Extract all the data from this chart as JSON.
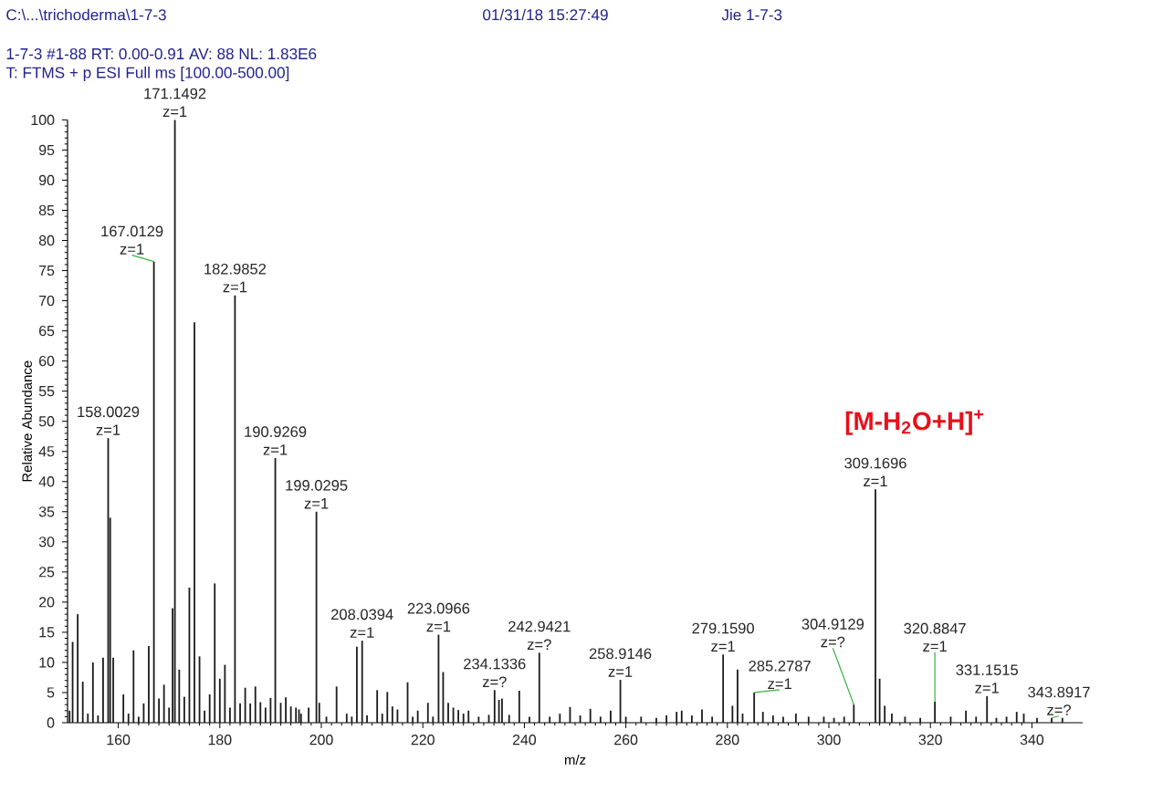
{
  "chart_data": {
    "type": "bar",
    "x": [
      150.4,
      151,
      152,
      153,
      154,
      155,
      156,
      157,
      158.0029,
      158.4,
      159,
      161,
      162,
      163,
      164,
      165,
      166,
      167.0129,
      168,
      169,
      170,
      170.7,
      171.1492,
      172,
      173,
      174,
      175,
      176,
      177,
      178,
      179,
      180,
      181,
      182,
      182.9852,
      184,
      185,
      186,
      187,
      188,
      189,
      190,
      190.9269,
      192,
      193,
      194,
      195,
      195.6,
      196,
      197.5,
      199.0295,
      199.6,
      201,
      203,
      205,
      206,
      207,
      208.0394,
      209,
      211,
      212,
      213,
      214,
      215,
      217,
      218,
      219,
      221,
      222,
      223.0966,
      224,
      225,
      226,
      227,
      228,
      229,
      231,
      233,
      234.1336,
      235,
      235.6,
      237,
      239,
      241,
      242.9421,
      245,
      247,
      249,
      251,
      253,
      255,
      257,
      258.9146,
      260,
      263,
      266,
      268,
      270,
      271,
      273,
      275,
      277,
      279.159,
      281,
      282,
      283,
      285.2787,
      287,
      289,
      291,
      293.5,
      296,
      299,
      301,
      303,
      304.9129,
      309.1696,
      310,
      311,
      312.4,
      315,
      318,
      320.8847,
      324,
      327,
      329,
      331.1515,
      333,
      335,
      337,
      338.4,
      341,
      343.8917,
      346
    ],
    "values": [
      2,
      13.4,
      18,
      6.8,
      1.5,
      10,
      1.2,
      10.8,
      47.2,
      34,
      10.8,
      4.7,
      1.5,
      12,
      1,
      3.2,
      12.7,
      76.5,
      4,
      6.3,
      2.5,
      19,
      100,
      8.8,
      4.3,
      22.4,
      66.4,
      11,
      2,
      4.7,
      23.1,
      7.3,
      9.6,
      2.5,
      70.9,
      3.2,
      5.8,
      3.2,
      6,
      3.4,
      2.5,
      4.1,
      43.9,
      3.3,
      4.2,
      2.7,
      2.5,
      2.2,
      1.5,
      2.5,
      35,
      3.3,
      1,
      6,
      1.5,
      1,
      12.6,
      13.6,
      1.2,
      5.4,
      1.5,
      5.1,
      2.7,
      2.2,
      6.7,
      1,
      2,
      3.3,
      1,
      14.6,
      8.4,
      3.3,
      2.5,
      2.1,
      1.5,
      2,
      1,
      1.3,
      5.4,
      3.8,
      4,
      1.3,
      5.3,
      1,
      11.6,
      1,
      1.5,
      2.6,
      1.2,
      2.3,
      1,
      2,
      7.1,
      1,
      1,
      0.8,
      1.2,
      1.8,
      2,
      1.2,
      2.2,
      1,
      11.3,
      2.8,
      8.8,
      1.5,
      5,
      1.8,
      1.2,
      1,
      1.5,
      1,
      1,
      0.8,
      1,
      3,
      38.7,
      7.3,
      2.8,
      1.5,
      1,
      0.8,
      3.5,
      1,
      2,
      1,
      4.4,
      0.8,
      1,
      1.8,
      1.5,
      0.8,
      0.8,
      0.8
    ],
    "color": "#1a1a1a",
    "xlim": [
      150,
      350
    ],
    "ylim": [
      0,
      100
    ],
    "xticks": [
      160,
      180,
      200,
      220,
      240,
      260,
      280,
      300,
      320,
      340
    ],
    "yticks": [
      0,
      5,
      10,
      15,
      20,
      25,
      30,
      35,
      40,
      45,
      50,
      55,
      60,
      65,
      70,
      75,
      80,
      85,
      90,
      95,
      100
    ],
    "xlabel": "m/z",
    "ylabel": "Relative Abundance",
    "annotations": [
      "C:\\...\\trichoderma\\1-7-3",
      "01/31/18 15:27:49",
      "Jie 1-7-3",
      "1-7-3 #1-88 RT: 0.00-0.91 AV: 88 NL: 1.83E6",
      "T: FTMS + p ESI Full ms [100.00-500.00]",
      "[M-H$_{2}$O+H]$^{+}$",
      {
        "text": "158.0029",
        "x": 158.0029,
        "y": 47.2
      },
      {
        "text": "z=1",
        "x": 158.0029,
        "y": 47.2
      },
      {
        "text": "167.0129",
        "x": 167.0129,
        "y": 76.5
      },
      {
        "text": "z=1",
        "x": 167.0129,
        "y": 76.5
      },
      {
        "text": "171.1492",
        "x": 171.1492,
        "y": 100
      },
      {
        "text": "z=1",
        "x": 171.1492,
        "y": 100
      },
      {
        "text": "182.9852",
        "x": 182.9852,
        "y": 70.9
      },
      {
        "text": "z=1",
        "x": 182.9852,
        "y": 70.9
      },
      {
        "text": "190.9269",
        "x": 190.9269,
        "y": 43.9
      },
      {
        "text": "z=1",
        "x": 190.9269,
        "y": 43.9
      },
      {
        "text": "199.0295",
        "x": 199.0295,
        "y": 35
      },
      {
        "text": "z=1",
        "x": 199.0295,
        "y": 35
      },
      {
        "text": "208.0394",
        "x": 208.0394,
        "y": 13.6
      },
      {
        "text": "z=1",
        "x": 208.0394,
        "y": 13.6
      },
      {
        "text": "223.0966",
        "x": 223.0966,
        "y": 14.6
      },
      {
        "text": "z=1",
        "x": 223.0966,
        "y": 14.6
      },
      {
        "text": "234.1336",
        "x": 234.1336,
        "y": 5.4
      },
      {
        "text": "z=?",
        "x": 234.1336,
        "y": 5.4
      },
      {
        "text": "242.9421",
        "x": 242.9421,
        "y": 11.6
      },
      {
        "text": "z=?",
        "x": 242.9421,
        "y": 11.6
      },
      {
        "text": "258.9146",
        "x": 258.9146,
        "y": 7.1
      },
      {
        "text": "z=1",
        "x": 258.9146,
        "y": 7.1
      },
      {
        "text": "279.1590",
        "x": 279.159,
        "y": 11.3
      },
      {
        "text": "z=1",
        "x": 279.159,
        "y": 11.3
      },
      {
        "text": "285.2787",
        "x": 285.2787,
        "y": 5
      },
      {
        "text": "z=1",
        "x": 285.2787,
        "y": 5
      },
      {
        "text": "304.9129",
        "x": 304.9129,
        "y": 3
      },
      {
        "text": "z=?",
        "x": 304.9129,
        "y": 3
      },
      {
        "text": "309.1696",
        "x": 309.1696,
        "y": 38.7
      },
      {
        "text": "z=1",
        "x": 309.1696,
        "y": 38.7
      },
      {
        "text": "320.8847",
        "x": 320.8847,
        "y": 3.5
      },
      {
        "text": "z=1",
        "x": 320.8847,
        "y": 3.5
      },
      {
        "text": "331.1515",
        "x": 331.1515,
        "y": 4.4
      },
      {
        "text": "z=1",
        "x": 331.1515,
        "y": 4.4
      },
      {
        "text": "343.8917",
        "x": 343.8917,
        "y": 0.8
      },
      {
        "text": "z=?",
        "x": 343.8917,
        "y": 0.8
      }
    ]
  }
}
